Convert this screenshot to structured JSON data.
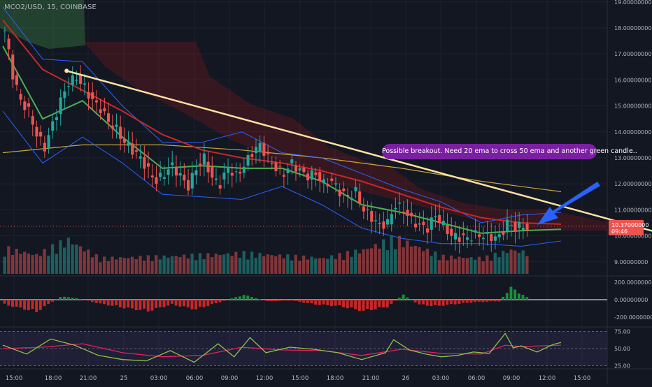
{
  "symbol": "MCO2/USD, 15, COINBASE",
  "price_axis": {
    "labels": [
      "19.00000000",
      "18.00000000",
      "17.00000000",
      "16.00000000",
      "15.00000000",
      "14.00000000",
      "13.00000000",
      "12.00000000",
      "11.00000000",
      "10.00000000",
      "9.00000000"
    ],
    "values": [
      19,
      18,
      17,
      16,
      15,
      14,
      13,
      12,
      11,
      10,
      9
    ],
    "current_price": "10.37000000",
    "countdown": "09:46"
  },
  "time_axis": {
    "labels": [
      "15:00",
      "18:00",
      "21:00",
      "25",
      "03:00",
      "06:00",
      "09:00",
      "12:00",
      "15:00",
      "18:00",
      "21:00",
      "26",
      "03:00",
      "06:00",
      "09:00",
      "12:00",
      "15:00"
    ]
  },
  "macd_axis": {
    "labels": [
      "200.00000000",
      "0.00000000",
      "-200.00000000"
    ],
    "values": [
      200,
      0,
      -200
    ]
  },
  "rsi_axis": {
    "labels": [
      "75.00",
      "50.00",
      "25.00"
    ],
    "values": [
      75,
      50,
      25
    ]
  },
  "annotation": {
    "text": "Possible breakout. Need 20 ema to cross 50 ema and another green candle.."
  },
  "colors": {
    "background": "#131722",
    "up": "#26a69a",
    "down": "#ef5350",
    "trendline": "#ffe0a0",
    "ema20": "#4caf50",
    "ema50": "#c62828",
    "ema200": "#c8a640",
    "bollinger": "#2962ff",
    "rsi": "#8bc34a",
    "rsi_ma": "#e91e63",
    "arrow": "#2962ff",
    "annotation_bg": "#7b1fa2"
  },
  "chart_data": {
    "type": "candlestick",
    "title": "MCO2/USD, 15, COINBASE",
    "ylim": [
      9,
      19
    ],
    "x_ticks": [
      "15:00",
      "18:00",
      "21:00",
      "25",
      "03:00",
      "06:00",
      "09:00",
      "12:00",
      "15:00",
      "18:00",
      "21:00",
      "26",
      "03:00",
      "06:00",
      "09:00",
      "12:00",
      "15:00"
    ],
    "price_path": [
      [
        0,
        17.9
      ],
      [
        2,
        16.2
      ],
      [
        4,
        15.2
      ],
      [
        6,
        14.8
      ],
      [
        8,
        13.9
      ],
      [
        10,
        13.4
      ],
      [
        12,
        14.3
      ],
      [
        14,
        15.2
      ],
      [
        16,
        15.9
      ],
      [
        18,
        16.1
      ],
      [
        20,
        15.7
      ],
      [
        22,
        15.2
      ],
      [
        24,
        14.9
      ],
      [
        26,
        14.4
      ],
      [
        28,
        14.1
      ],
      [
        30,
        13.6
      ],
      [
        32,
        13.3
      ],
      [
        34,
        13.0
      ],
      [
        36,
        12.5
      ],
      [
        38,
        12.1
      ],
      [
        40,
        12.4
      ],
      [
        42,
        12.7
      ],
      [
        44,
        12.3
      ],
      [
        46,
        11.9
      ],
      [
        48,
        12.6
      ],
      [
        50,
        13.0
      ],
      [
        52,
        12.2
      ],
      [
        54,
        12.0
      ],
      [
        56,
        12.6
      ],
      [
        58,
        12.3
      ],
      [
        60,
        12.7
      ],
      [
        62,
        13.2
      ],
      [
        64,
        13.5
      ],
      [
        66,
        13.0
      ],
      [
        68,
        12.6
      ],
      [
        70,
        12.4
      ],
      [
        72,
        12.8
      ],
      [
        74,
        12.5
      ],
      [
        76,
        12.3
      ],
      [
        78,
        12.4
      ],
      [
        80,
        12.0
      ],
      [
        82,
        12.1
      ],
      [
        84,
        11.7
      ],
      [
        86,
        11.5
      ],
      [
        88,
        11.7
      ],
      [
        90,
        11.0
      ],
      [
        92,
        10.7
      ],
      [
        94,
        10.4
      ],
      [
        96,
        10.5
      ],
      [
        98,
        11.2
      ],
      [
        100,
        11.0
      ],
      [
        102,
        10.6
      ],
      [
        104,
        10.4
      ],
      [
        106,
        10.3
      ],
      [
        108,
        10.8
      ],
      [
        110,
        10.4
      ],
      [
        112,
        10.0
      ],
      [
        114,
        9.95
      ],
      [
        116,
        9.9
      ],
      [
        118,
        10.05
      ],
      [
        120,
        10.0
      ],
      [
        122,
        9.95
      ],
      [
        124,
        9.95
      ],
      [
        126,
        10.5
      ],
      [
        128,
        10.3
      ],
      [
        130,
        10.4
      ],
      [
        132,
        10.1
      ],
      [
        134,
        10.2
      ],
      [
        136,
        10.1
      ],
      [
        138,
        10.2
      ],
      [
        140,
        10.37
      ]
    ],
    "series": [
      {
        "name": "",
        "kind": "ema20",
        "points": [
          [
            0,
            17.3
          ],
          [
            10,
            14.5
          ],
          [
            20,
            15.2
          ],
          [
            30,
            13.8
          ],
          [
            40,
            12.6
          ],
          [
            50,
            12.7
          ],
          [
            60,
            12.6
          ],
          [
            70,
            12.6
          ],
          [
            80,
            12.1
          ],
          [
            90,
            11.2
          ],
          [
            100,
            10.9
          ],
          [
            110,
            10.5
          ],
          [
            120,
            10.1
          ],
          [
            130,
            10.2
          ],
          [
            140,
            10.25
          ]
        ]
      },
      {
        "name": "",
        "kind": "ema50",
        "points": [
          [
            0,
            18.3
          ],
          [
            10,
            16.4
          ],
          [
            20,
            15.6
          ],
          [
            30,
            14.8
          ],
          [
            40,
            13.9
          ],
          [
            50,
            13.3
          ],
          [
            60,
            13.0
          ],
          [
            70,
            12.8
          ],
          [
            80,
            12.5
          ],
          [
            90,
            12.1
          ],
          [
            100,
            11.6
          ],
          [
            110,
            11.1
          ],
          [
            120,
            10.7
          ],
          [
            130,
            10.5
          ],
          [
            140,
            10.45
          ]
        ]
      },
      {
        "name": "",
        "kind": "ema200",
        "points": [
          [
            0,
            13.2
          ],
          [
            20,
            13.5
          ],
          [
            40,
            13.5
          ],
          [
            60,
            13.3
          ],
          [
            80,
            13.0
          ],
          [
            100,
            12.6
          ],
          [
            120,
            12.1
          ],
          [
            140,
            11.7
          ]
        ]
      },
      {
        "name": "",
        "kind": "bb_upper",
        "points": [
          [
            0,
            18.8
          ],
          [
            10,
            16.8
          ],
          [
            20,
            16.7
          ],
          [
            30,
            15.0
          ],
          [
            40,
            13.6
          ],
          [
            50,
            13.6
          ],
          [
            60,
            14.0
          ],
          [
            70,
            13.2
          ],
          [
            80,
            13.0
          ],
          [
            90,
            12.4
          ],
          [
            100,
            11.8
          ],
          [
            110,
            11.3
          ],
          [
            120,
            10.5
          ],
          [
            130,
            10.8
          ],
          [
            140,
            10.9
          ]
        ]
      },
      {
        "name": "",
        "kind": "bb_lower",
        "points": [
          [
            0,
            14.8
          ],
          [
            10,
            12.8
          ],
          [
            20,
            13.8
          ],
          [
            30,
            12.8
          ],
          [
            40,
            11.6
          ],
          [
            50,
            11.5
          ],
          [
            60,
            11.4
          ],
          [
            70,
            11.9
          ],
          [
            80,
            11.2
          ],
          [
            90,
            10.3
          ],
          [
            100,
            9.9
          ],
          [
            110,
            9.7
          ],
          [
            120,
            9.7
          ],
          [
            130,
            9.6
          ],
          [
            140,
            9.8
          ]
        ]
      },
      {
        "name": "",
        "kind": "rsi",
        "points": [
          [
            0,
            55
          ],
          [
            6,
            42
          ],
          [
            12,
            64
          ],
          [
            18,
            55
          ],
          [
            24,
            40
          ],
          [
            30,
            34
          ],
          [
            36,
            32
          ],
          [
            42,
            47
          ],
          [
            48,
            30
          ],
          [
            54,
            57
          ],
          [
            58,
            38
          ],
          [
            62,
            66
          ],
          [
            66,
            44
          ],
          [
            72,
            52
          ],
          [
            78,
            49
          ],
          [
            84,
            44
          ],
          [
            90,
            34
          ],
          [
            96,
            44
          ],
          [
            98,
            63
          ],
          [
            102,
            48
          ],
          [
            106,
            42
          ],
          [
            110,
            38
          ],
          [
            114,
            40
          ],
          [
            118,
            45
          ],
          [
            122,
            43
          ],
          [
            126,
            72
          ],
          [
            128,
            51
          ],
          [
            130,
            54
          ],
          [
            134,
            45
          ],
          [
            138,
            56
          ],
          [
            140,
            59
          ]
        ]
      },
      {
        "name": "",
        "kind": "rsi_ma",
        "points": [
          [
            0,
            50
          ],
          [
            10,
            52
          ],
          [
            20,
            57
          ],
          [
            30,
            44
          ],
          [
            40,
            38
          ],
          [
            50,
            40
          ],
          [
            60,
            52
          ],
          [
            70,
            48
          ],
          [
            80,
            47
          ],
          [
            90,
            40
          ],
          [
            100,
            49
          ],
          [
            110,
            43
          ],
          [
            120,
            42
          ],
          [
            126,
            55
          ],
          [
            130,
            53
          ],
          [
            140,
            55
          ]
        ]
      },
      {
        "name": "",
        "kind": "macd_hist",
        "points": [
          [
            0,
            -60
          ],
          [
            8,
            -150
          ],
          [
            14,
            40
          ],
          [
            18,
            20
          ],
          [
            24,
            -50
          ],
          [
            30,
            -100
          ],
          [
            36,
            -140
          ],
          [
            42,
            -60
          ],
          [
            48,
            -120
          ],
          [
            54,
            -30
          ],
          [
            60,
            60
          ],
          [
            66,
            -20
          ],
          [
            72,
            -10
          ],
          [
            78,
            -60
          ],
          [
            84,
            -80
          ],
          [
            90,
            -140
          ],
          [
            96,
            -90
          ],
          [
            100,
            60
          ],
          [
            104,
            -60
          ],
          [
            108,
            -80
          ],
          [
            112,
            -60
          ],
          [
            118,
            -30
          ],
          [
            124,
            -20
          ],
          [
            127,
            150
          ],
          [
            130,
            60
          ],
          [
            134,
            -60
          ],
          [
            138,
            -20
          ],
          [
            140,
            90
          ]
        ]
      }
    ],
    "trendline": [
      [
        16,
        16.35
      ],
      [
        190,
        9.05
      ]
    ],
    "volume": [
      [
        0,
        0.6
      ],
      [
        8,
        0.4
      ],
      [
        16,
        0.85
      ],
      [
        24,
        0.3
      ],
      [
        40,
        0.35
      ],
      [
        60,
        0.45
      ],
      [
        80,
        0.3
      ],
      [
        90,
        0.55
      ],
      [
        98,
        0.9
      ],
      [
        110,
        0.35
      ],
      [
        120,
        0.3
      ],
      [
        127,
        0.55
      ],
      [
        140,
        0.3
      ]
    ]
  }
}
